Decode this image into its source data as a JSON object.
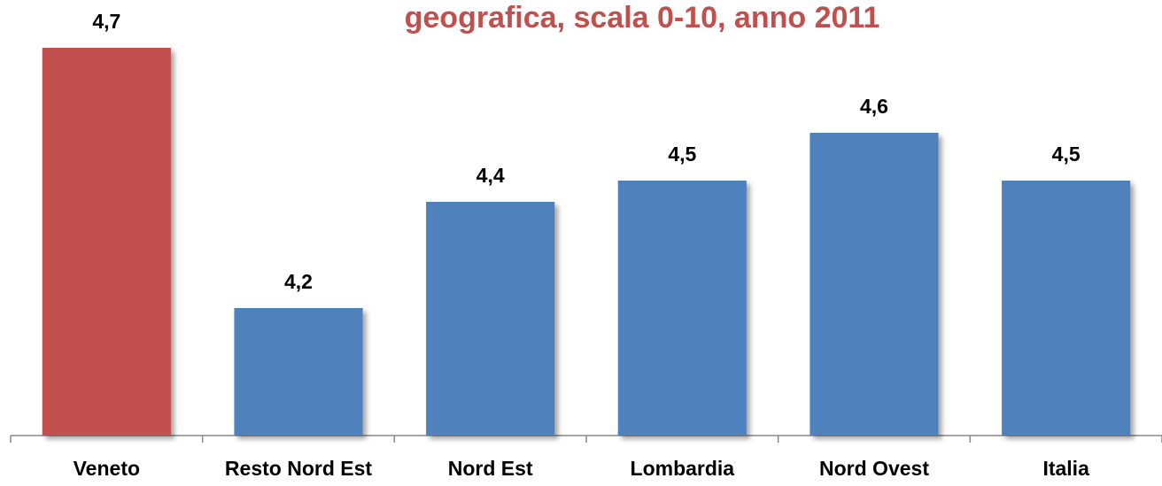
{
  "chart_data": {
    "type": "bar",
    "title": "geografica, scala 0-10, anno 2011",
    "categories": [
      "Veneto",
      "Resto Nord Est",
      "Nord Est",
      "Lombardia",
      "Nord Ovest",
      "Italia"
    ],
    "values": [
      4.71,
      4.22,
      4.42,
      4.46,
      4.55,
      4.46
    ],
    "value_labels": [
      "4,7",
      "4,2",
      "4,4",
      "4,5",
      "4,6",
      "4,5"
    ],
    "colors": [
      "#c0504d",
      "#4f81bd",
      "#4f81bd",
      "#4f81bd",
      "#4f81bd",
      "#4f81bd"
    ],
    "ylim": [
      3.98,
      4.8
    ]
  }
}
